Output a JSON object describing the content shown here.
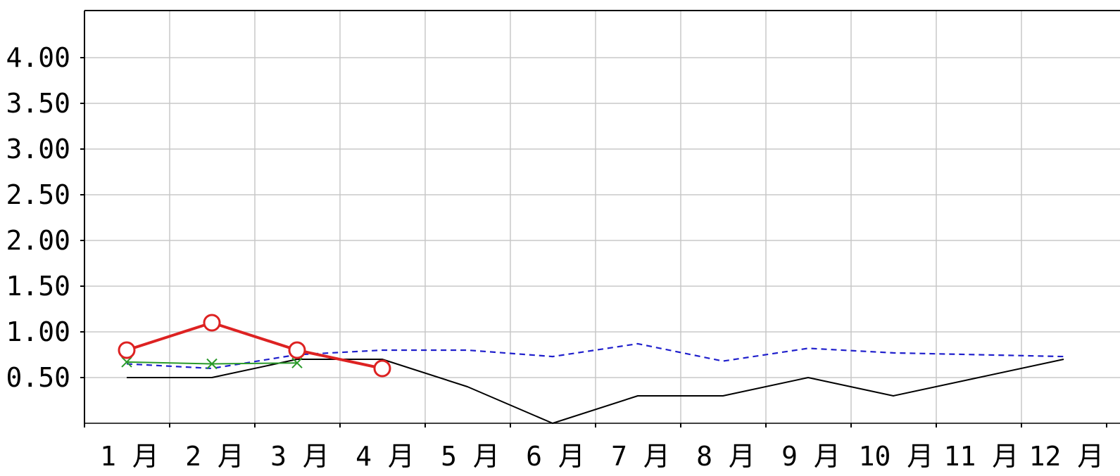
{
  "chart_data": {
    "type": "line",
    "title": "",
    "xlabel": "",
    "ylabel": "",
    "categories": [
      "1 月",
      "2 月",
      "3 月",
      "4 月",
      "5 月",
      "6 月",
      "7 月",
      "8 月",
      "9 月",
      "10 月",
      "11 月",
      "12 月"
    ],
    "yticks": [
      "0.50",
      "1.00",
      "1.50",
      "2.00",
      "2.50",
      "3.00",
      "3.50",
      "4.00"
    ],
    "ylim": [
      0,
      4.5
    ],
    "grid": true,
    "legend": "none",
    "series": [
      {
        "color": "#000000",
        "style": "solid",
        "marker": "none",
        "values": [
          0.5,
          0.5,
          0.7,
          0.7,
          0.4,
          0.0,
          0.3,
          0.3,
          0.5,
          0.3,
          0.5,
          0.7
        ]
      },
      {
        "color": "#1f1fcc",
        "style": "dashed",
        "marker": "none",
        "values": [
          0.65,
          0.6,
          0.75,
          0.8,
          0.8,
          0.73,
          0.87,
          0.68,
          0.82,
          0.77,
          0.75,
          0.73
        ]
      },
      {
        "color": "#2a9a2a",
        "style": "solid",
        "marker": "x",
        "values": [
          0.67,
          0.65,
          0.66,
          null,
          null,
          null,
          null,
          null,
          null,
          null,
          null,
          null
        ]
      },
      {
        "color": "#dd2222",
        "style": "solid-thick",
        "marker": "circle",
        "values": [
          0.8,
          1.1,
          0.8,
          0.6,
          null,
          null,
          null,
          null,
          null,
          null,
          null,
          null
        ]
      }
    ]
  }
}
